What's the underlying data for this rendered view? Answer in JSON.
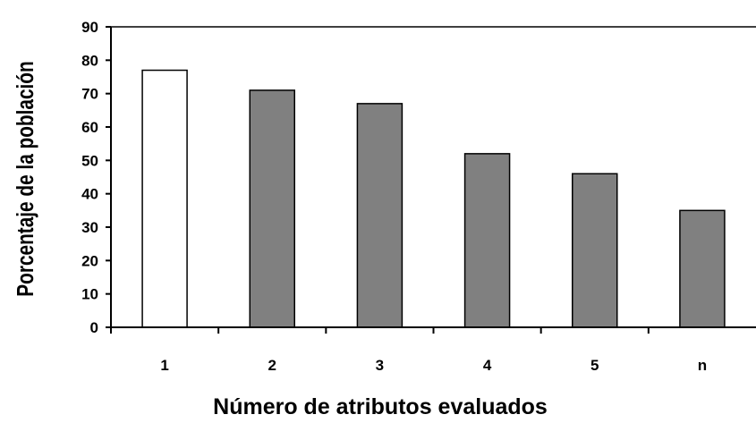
{
  "chart_data": {
    "type": "bar",
    "title": "",
    "xlabel": "Número de atributos evaluados",
    "ylabel": "Porcentaje de la población",
    "categories": [
      "1",
      "2",
      "3",
      "4",
      "5",
      "n"
    ],
    "values": [
      77,
      71,
      67,
      52,
      46,
      35
    ],
    "bar_colors": [
      "#ffffff",
      "#808080",
      "#808080",
      "#808080",
      "#808080",
      "#808080"
    ],
    "ylim": [
      0,
      90
    ],
    "yticks": [
      0,
      10,
      20,
      30,
      40,
      50,
      60,
      70,
      80,
      90
    ],
    "grid": false,
    "legend": "none"
  }
}
